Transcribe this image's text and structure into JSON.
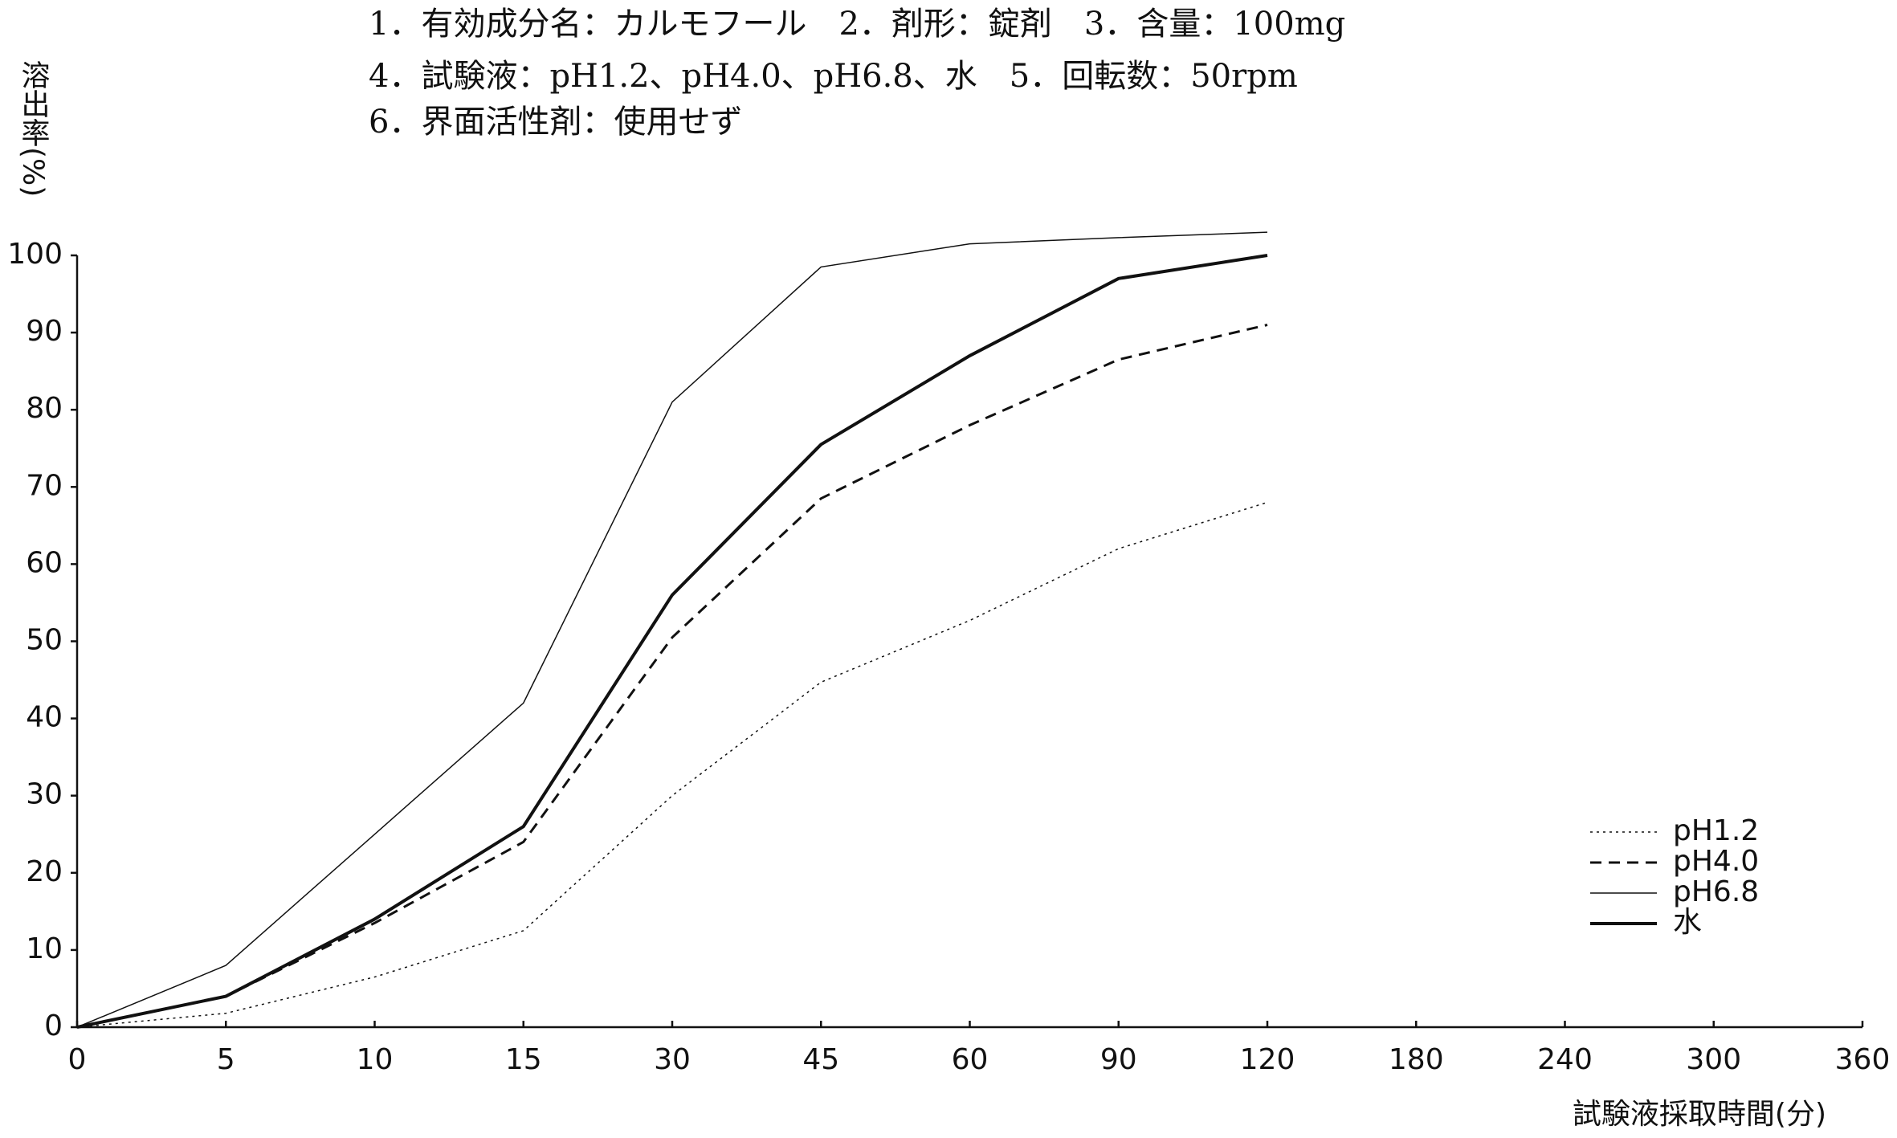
{
  "chart_data": {
    "type": "line",
    "title_lines": [
      "1．有効成分名：カルモフール　2．剤形：錠剤　3．含量：100mg",
      "4．試験液：pH1.2、pH4.0、pH6.8、水　5．回転数：50rpm",
      "6．界面活性剤：使用せず"
    ],
    "y_label": "溶出率(%)",
    "x_label": "試験液採取時間(分)",
    "categories": [
      "0",
      "5",
      "10",
      "15",
      "30",
      "45",
      "60",
      "90",
      "120",
      "180",
      "240",
      "300",
      "360"
    ],
    "series": [
      {
        "name": "pH1.2",
        "color": "#111111",
        "dash": "dotted",
        "width": 1.5,
        "values": [
          0,
          1.8,
          6.5,
          12.5,
          30,
          44.7,
          52.7,
          62,
          68,
          null,
          null,
          null,
          null
        ]
      },
      {
        "name": "pH4.0",
        "color": "#111111",
        "dash": "dashed",
        "width": 3,
        "values": [
          0,
          4,
          13.5,
          24,
          50.5,
          68.5,
          78,
          86.5,
          91,
          null,
          null,
          null,
          null
        ]
      },
      {
        "name": "pH6.8",
        "color": "#111111",
        "dash": "solid",
        "width": 1.5,
        "values": [
          0,
          8,
          25,
          42,
          81,
          98.5,
          101.5,
          102.3,
          103,
          null,
          null,
          null,
          null
        ]
      },
      {
        "name": "水",
        "color": "#111111",
        "dash": "solid",
        "width": 4,
        "values": [
          0,
          4,
          14,
          26,
          56,
          75.5,
          87,
          97,
          100,
          null,
          null,
          null,
          null
        ]
      }
    ],
    "ylim": [
      0,
      100
    ],
    "yticks": [
      0,
      10,
      20,
      30,
      40,
      50,
      60,
      70,
      80,
      90,
      100
    ],
    "legend": "lower right",
    "grid": false
  }
}
